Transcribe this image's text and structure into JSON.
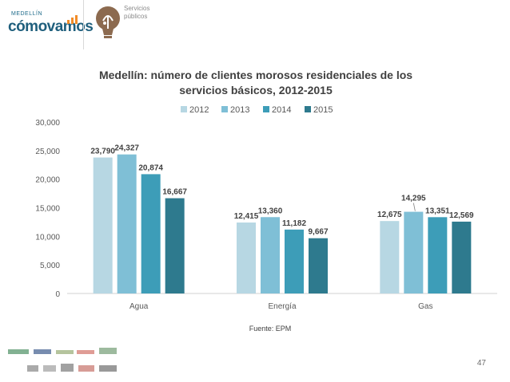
{
  "header": {
    "brand_city": "MEDELLÍN",
    "brand_name": "cómovamos",
    "topic_label": "Servicios\npúblicos"
  },
  "page_number": "47",
  "colors": {
    "series": [
      "#b7d7e3",
      "#7fbfd6",
      "#3d9db8",
      "#2e7a8e"
    ],
    "axis": "#d0d0d0",
    "text": "#404040"
  },
  "chart_data": {
    "type": "bar",
    "title": "Medellín: número de clientes morosos residenciales de los servicios básicos, 2012-2015",
    "title_lines": [
      "Medellín: número de clientes morosos residenciales de los",
      "servicios básicos, 2012-2015"
    ],
    "categories": [
      "Agua",
      "Energía",
      "Gas"
    ],
    "series": [
      {
        "name": "2012",
        "values": [
          23790,
          12415,
          12675
        ],
        "labels": [
          "23,790",
          "12,415",
          "12,675"
        ]
      },
      {
        "name": "2013",
        "values": [
          24327,
          13360,
          14295
        ],
        "labels": [
          "24,327",
          "13,360",
          "14,295"
        ]
      },
      {
        "name": "2014",
        "values": [
          20874,
          11182,
          13351
        ],
        "labels": [
          "20,874",
          "11,182",
          "13,351"
        ]
      },
      {
        "name": "2015",
        "values": [
          16667,
          9667,
          12569
        ],
        "labels": [
          "16,667",
          "9,667",
          "12,569"
        ]
      }
    ],
    "yticks": [
      0,
      5000,
      10000,
      15000,
      20000,
      25000,
      30000
    ],
    "ytick_labels": [
      "0",
      "5,000",
      "10,000",
      "15,000",
      "20,000",
      "25,000",
      "30,000"
    ],
    "ylim": [
      0,
      30000
    ],
    "xlabel": "",
    "ylabel": "",
    "legend_position": "top-center",
    "grid": false,
    "source": "Fuente: EPM"
  }
}
